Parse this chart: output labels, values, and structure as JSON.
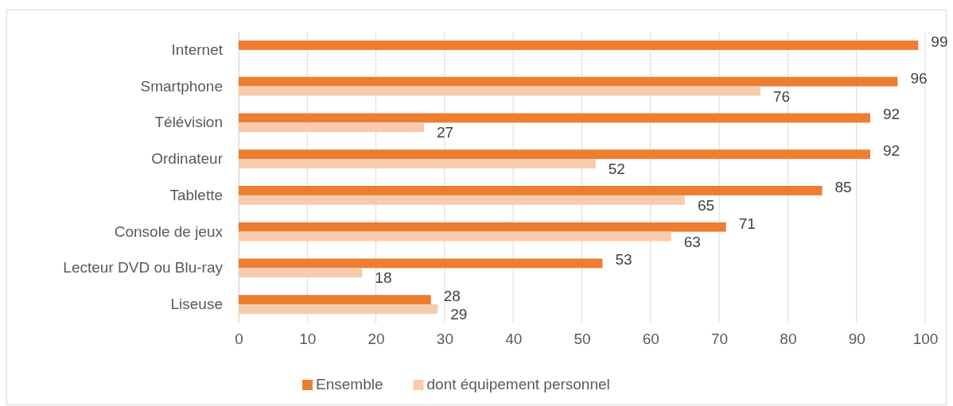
{
  "chart_data": {
    "type": "bar",
    "orientation": "horizontal",
    "categories": [
      "Internet",
      "Smartphone",
      "Télévision",
      "Ordinateur",
      "Tablette",
      "Console de jeux",
      "Lecteur DVD ou Blu-ray",
      "Liseuse"
    ],
    "series": [
      {
        "name": "Ensemble",
        "color": "#ed7d31",
        "values": [
          99,
          96,
          92,
          92,
          85,
          71,
          53,
          28
        ]
      },
      {
        "name": "dont équipement personnel",
        "color": "#f8cbad",
        "values": [
          null,
          76,
          27,
          52,
          65,
          63,
          18,
          29
        ]
      }
    ],
    "xlim": [
      0,
      100
    ],
    "xticks": [
      0,
      10,
      20,
      30,
      40,
      50,
      60,
      70,
      80,
      90,
      100
    ],
    "grid": "x",
    "legend": "bottom",
    "data_labels": true
  }
}
